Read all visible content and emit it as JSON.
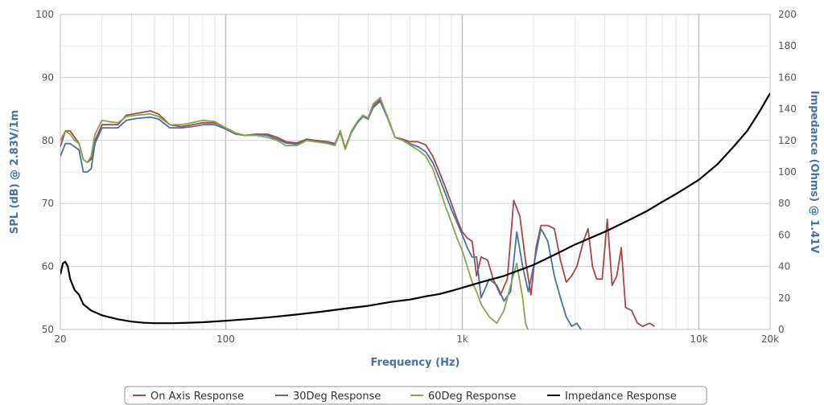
{
  "chart_data": {
    "type": "line",
    "title": "",
    "xlabel": "Frequency (Hz)",
    "ylabel": "SPL (dB) @ 2.83V/1m",
    "y2label": "Impedance (Ohms) @ 1.41V",
    "x_scale": "log",
    "xlim": [
      20,
      20000
    ],
    "ylim": [
      50,
      100
    ],
    "y2lim": [
      0,
      200
    ],
    "x_ticks": [
      20,
      100,
      1000,
      10000,
      20000
    ],
    "x_tick_labels": [
      "20",
      "100",
      "1k",
      "10k",
      "20k"
    ],
    "y_ticks": [
      50,
      60,
      70,
      80,
      90,
      100
    ],
    "y2_ticks": [
      0,
      20,
      40,
      60,
      80,
      100,
      120,
      140,
      160,
      180,
      200
    ],
    "grid": true,
    "legend_position": "bottom",
    "series": [
      {
        "name": "On Axis Response",
        "axis": "left",
        "color": "#aa4643",
        "points": [
          [
            20,
            79
          ],
          [
            21,
            81.5
          ],
          [
            22,
            81.5
          ],
          [
            23,
            80.5
          ],
          [
            24,
            79.5
          ],
          [
            25,
            77
          ],
          [
            26,
            76.5
          ],
          [
            27,
            77
          ],
          [
            28,
            80
          ],
          [
            30,
            82.5
          ],
          [
            32,
            82.5
          ],
          [
            35,
            82.5
          ],
          [
            38,
            84
          ],
          [
            42,
            84.3
          ],
          [
            48,
            84.7
          ],
          [
            52,
            84.2
          ],
          [
            58,
            82.5
          ],
          [
            65,
            82.2
          ],
          [
            72,
            82.5
          ],
          [
            80,
            82.8
          ],
          [
            90,
            82.8
          ],
          [
            100,
            82
          ],
          [
            110,
            81.2
          ],
          [
            120,
            80.8
          ],
          [
            135,
            81
          ],
          [
            150,
            81
          ],
          [
            165,
            80.5
          ],
          [
            180,
            79.8
          ],
          [
            200,
            79.6
          ],
          [
            220,
            80.2
          ],
          [
            240,
            80
          ],
          [
            270,
            79.8
          ],
          [
            290,
            79.5
          ],
          [
            305,
            81.5
          ],
          [
            320,
            78.8
          ],
          [
            340,
            81.5
          ],
          [
            360,
            83
          ],
          [
            380,
            84
          ],
          [
            400,
            83.5
          ],
          [
            420,
            85.5
          ],
          [
            450,
            86.5
          ],
          [
            480,
            84
          ],
          [
            520,
            80.5
          ],
          [
            560,
            80.2
          ],
          [
            600,
            79.8
          ],
          [
            650,
            79.8
          ],
          [
            700,
            79.3
          ],
          [
            750,
            77.5
          ],
          [
            800,
            75
          ],
          [
            850,
            72.5
          ],
          [
            900,
            70
          ],
          [
            950,
            67.5
          ],
          [
            1000,
            65.5
          ],
          [
            1050,
            64.5
          ],
          [
            1100,
            64
          ],
          [
            1150,
            58.5
          ],
          [
            1200,
            61.5
          ],
          [
            1280,
            61
          ],
          [
            1350,
            58
          ],
          [
            1450,
            55.5
          ],
          [
            1550,
            58
          ],
          [
            1650,
            70.5
          ],
          [
            1750,
            68
          ],
          [
            1850,
            61
          ],
          [
            1950,
            55.5
          ],
          [
            2050,
            63
          ],
          [
            2150,
            66.5
          ],
          [
            2300,
            66.5
          ],
          [
            2450,
            66
          ],
          [
            2600,
            61
          ],
          [
            2750,
            57.5
          ],
          [
            2900,
            58.5
          ],
          [
            3050,
            60
          ],
          [
            3250,
            64
          ],
          [
            3400,
            66
          ],
          [
            3550,
            60
          ],
          [
            3700,
            58
          ],
          [
            3900,
            58
          ],
          [
            4100,
            67.5
          ],
          [
            4300,
            57
          ],
          [
            4500,
            58.5
          ],
          [
            4700,
            63
          ],
          [
            4900,
            53.5
          ],
          [
            5200,
            53
          ],
          [
            5500,
            51
          ],
          [
            5800,
            50.5
          ],
          [
            6200,
            51
          ],
          [
            6500,
            50.5
          ]
        ]
      },
      {
        "name": "30Deg Response",
        "axis": "left",
        "color": "#4572a7",
        "points": [
          [
            20,
            77.5
          ],
          [
            21,
            79.5
          ],
          [
            22,
            79.5
          ],
          [
            23,
            79
          ],
          [
            24,
            78.5
          ],
          [
            25,
            75
          ],
          [
            26,
            75
          ],
          [
            27,
            75.5
          ],
          [
            28,
            79.5
          ],
          [
            30,
            82
          ],
          [
            32,
            82
          ],
          [
            35,
            82
          ],
          [
            38,
            83.2
          ],
          [
            42,
            83.5
          ],
          [
            48,
            83.7
          ],
          [
            52,
            83.4
          ],
          [
            58,
            82
          ],
          [
            65,
            82
          ],
          [
            72,
            82.2
          ],
          [
            80,
            82.5
          ],
          [
            90,
            82.5
          ],
          [
            100,
            81.8
          ],
          [
            110,
            81
          ],
          [
            120,
            80.8
          ],
          [
            135,
            81
          ],
          [
            150,
            80.8
          ],
          [
            165,
            80.2
          ],
          [
            180,
            79.6
          ],
          [
            200,
            79.4
          ],
          [
            220,
            80
          ],
          [
            240,
            79.8
          ],
          [
            270,
            79.6
          ],
          [
            290,
            79.4
          ],
          [
            305,
            81.3
          ],
          [
            320,
            78.6
          ],
          [
            340,
            81.3
          ],
          [
            360,
            82.8
          ],
          [
            380,
            83.8
          ],
          [
            400,
            83.4
          ],
          [
            420,
            85.2
          ],
          [
            450,
            86.2
          ],
          [
            480,
            83.8
          ],
          [
            520,
            80.5
          ],
          [
            560,
            80
          ],
          [
            600,
            79.5
          ],
          [
            650,
            79
          ],
          [
            700,
            78.2
          ],
          [
            750,
            76.5
          ],
          [
            800,
            74
          ],
          [
            850,
            71.5
          ],
          [
            900,
            69
          ],
          [
            950,
            67
          ],
          [
            1000,
            65
          ],
          [
            1050,
            63
          ],
          [
            1100,
            61.5
          ],
          [
            1150,
            61.5
          ],
          [
            1200,
            55
          ],
          [
            1300,
            58
          ],
          [
            1400,
            57
          ],
          [
            1500,
            54.5
          ],
          [
            1600,
            56
          ],
          [
            1700,
            65.5
          ],
          [
            1800,
            60
          ],
          [
            1900,
            56
          ],
          [
            2000,
            60
          ],
          [
            2150,
            66
          ],
          [
            2300,
            64
          ],
          [
            2450,
            58.5
          ],
          [
            2600,
            55
          ],
          [
            2750,
            52
          ],
          [
            2900,
            50.5
          ],
          [
            3050,
            51
          ],
          [
            3200,
            49.8
          ]
        ]
      },
      {
        "name": "60Deg Response",
        "axis": "left",
        "color": "#89a54e",
        "points": [
          [
            20,
            80
          ],
          [
            21,
            81.5
          ],
          [
            22,
            81
          ],
          [
            23,
            80
          ],
          [
            24,
            79.5
          ],
          [
            25,
            77
          ],
          [
            26,
            76.5
          ],
          [
            27,
            77.5
          ],
          [
            28,
            81
          ],
          [
            30,
            83.2
          ],
          [
            32,
            83
          ],
          [
            35,
            82.8
          ],
          [
            38,
            83.8
          ],
          [
            42,
            84
          ],
          [
            48,
            84.2
          ],
          [
            52,
            83.8
          ],
          [
            58,
            82.5
          ],
          [
            65,
            82.5
          ],
          [
            72,
            82.8
          ],
          [
            80,
            83.2
          ],
          [
            90,
            83
          ],
          [
            100,
            82
          ],
          [
            110,
            81.2
          ],
          [
            120,
            80.8
          ],
          [
            135,
            80.8
          ],
          [
            150,
            80.5
          ],
          [
            165,
            80
          ],
          [
            180,
            79.2
          ],
          [
            200,
            79.2
          ],
          [
            220,
            80
          ],
          [
            240,
            79.8
          ],
          [
            270,
            79.5
          ],
          [
            290,
            79.2
          ],
          [
            305,
            81.6
          ],
          [
            320,
            78.6
          ],
          [
            340,
            81.5
          ],
          [
            360,
            83
          ],
          [
            380,
            84
          ],
          [
            400,
            83.6
          ],
          [
            420,
            85.8
          ],
          [
            450,
            86.8
          ],
          [
            480,
            84
          ],
          [
            520,
            80.5
          ],
          [
            560,
            80
          ],
          [
            600,
            79.3
          ],
          [
            650,
            78.5
          ],
          [
            700,
            77.5
          ],
          [
            750,
            75.5
          ],
          [
            800,
            72.5
          ],
          [
            850,
            69.5
          ],
          [
            900,
            67
          ],
          [
            950,
            64.5
          ],
          [
            1000,
            62.5
          ],
          [
            1050,
            60
          ],
          [
            1100,
            57.5
          ],
          [
            1150,
            56
          ],
          [
            1200,
            54
          ],
          [
            1300,
            52
          ],
          [
            1400,
            51
          ],
          [
            1500,
            53
          ],
          [
            1600,
            57
          ],
          [
            1700,
            60.5
          ],
          [
            1800,
            55
          ],
          [
            1850,
            51
          ],
          [
            1900,
            49.8
          ]
        ]
      },
      {
        "name": "Impedance Response",
        "axis": "right",
        "color": "#000000",
        "points": [
          [
            20,
            35
          ],
          [
            20.5,
            42
          ],
          [
            21,
            43
          ],
          [
            21.5,
            40
          ],
          [
            22,
            32
          ],
          [
            23,
            25
          ],
          [
            24,
            22
          ],
          [
            25,
            16
          ],
          [
            27,
            12
          ],
          [
            30,
            9
          ],
          [
            35,
            6.5
          ],
          [
            40,
            5
          ],
          [
            45,
            4.3
          ],
          [
            50,
            4
          ],
          [
            60,
            4
          ],
          [
            70,
            4.3
          ],
          [
            80,
            4.6
          ],
          [
            100,
            5.5
          ],
          [
            130,
            6.8
          ],
          [
            160,
            8
          ],
          [
            200,
            9.5
          ],
          [
            260,
            11.5
          ],
          [
            330,
            13.5
          ],
          [
            400,
            15
          ],
          [
            500,
            17.5
          ],
          [
            600,
            19
          ],
          [
            700,
            21
          ],
          [
            800,
            22.5
          ],
          [
            900,
            24.5
          ],
          [
            1000,
            26.5
          ],
          [
            1200,
            30
          ],
          [
            1500,
            34
          ],
          [
            2000,
            41
          ],
          [
            2500,
            48
          ],
          [
            3000,
            54
          ],
          [
            4000,
            62
          ],
          [
            5000,
            69
          ],
          [
            6000,
            75
          ],
          [
            7000,
            81
          ],
          [
            8000,
            86
          ],
          [
            10000,
            95
          ],
          [
            12000,
            105
          ],
          [
            14000,
            116
          ],
          [
            16000,
            126
          ],
          [
            18000,
            138
          ],
          [
            20000,
            150
          ]
        ]
      }
    ]
  }
}
